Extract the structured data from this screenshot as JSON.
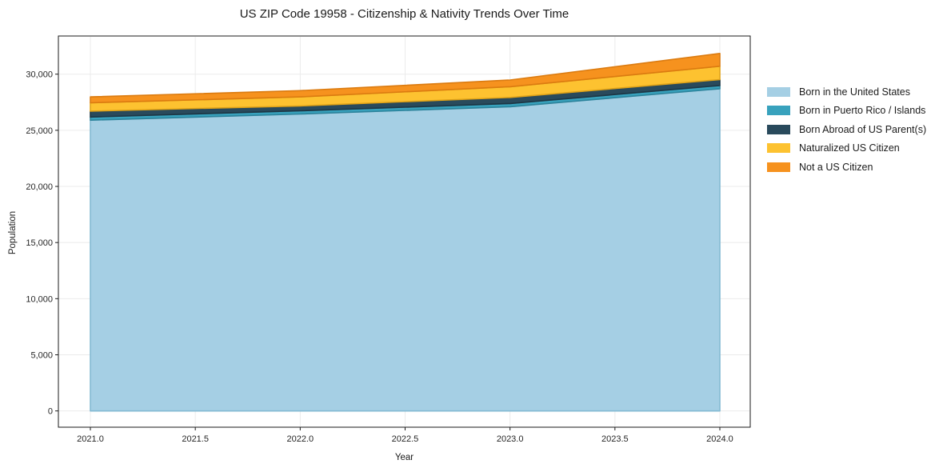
{
  "title": "US ZIP Code 19958 - Citizenship & Nativity Trends Over Time",
  "chart_data": {
    "type": "area",
    "stacked": true,
    "title": "US ZIP Code 19958 - Citizenship & Nativity Trends Over Time",
    "xlabel": "Year",
    "ylabel": "Population",
    "x": [
      2021,
      2022,
      2023,
      2024
    ],
    "series": [
      {
        "name": "Born in the United States",
        "values": [
          25900,
          26450,
          27100,
          28700
        ],
        "color": "#A5CFE4",
        "edge_color": "#83B9D2"
      },
      {
        "name": "Born in Puerto Rico / Islands",
        "values": [
          280,
          290,
          285,
          285
        ],
        "color": "#38A2BD",
        "edge_color": "#2C839B"
      },
      {
        "name": "Born Abroad of US Parent(s)",
        "values": [
          530,
          430,
          545,
          530
        ],
        "color": "#294A5C",
        "edge_color": "#1D3644"
      },
      {
        "name": "Naturalized US Citizen",
        "values": [
          740,
          810,
          955,
          1190
        ],
        "color": "#FDC230",
        "edge_color": "#E1A317"
      },
      {
        "name": "Not a US Citizen",
        "values": [
          530,
          550,
          595,
          1140
        ],
        "color": "#F6921E",
        "edge_color": "#DB7B10"
      }
    ],
    "x_tick_values": [
      2021.0,
      2021.5,
      2022.0,
      2022.5,
      2023.0,
      2023.5,
      2024.0
    ],
    "x_tick_labels": [
      "2021.0",
      "2021.5",
      "2022.0",
      "2022.5",
      "2023.0",
      "2023.5",
      "2024.0"
    ],
    "y_tick_values": [
      0,
      5000,
      10000,
      15000,
      20000,
      25000,
      30000
    ],
    "y_tick_labels": [
      "0",
      "5,000",
      "10,000",
      "15,000",
      "20,000",
      "25,000",
      "30,000"
    ],
    "xlim": [
      2020.8475,
      2024.1449
    ],
    "ylim": [
      -1450,
      33400
    ],
    "grid": true,
    "legend_position": "right"
  },
  "colors": {
    "grid": "#ebebeb",
    "spine": "#1a1a1a",
    "tick": "#1a1a1a",
    "background": "#ffffff"
  }
}
